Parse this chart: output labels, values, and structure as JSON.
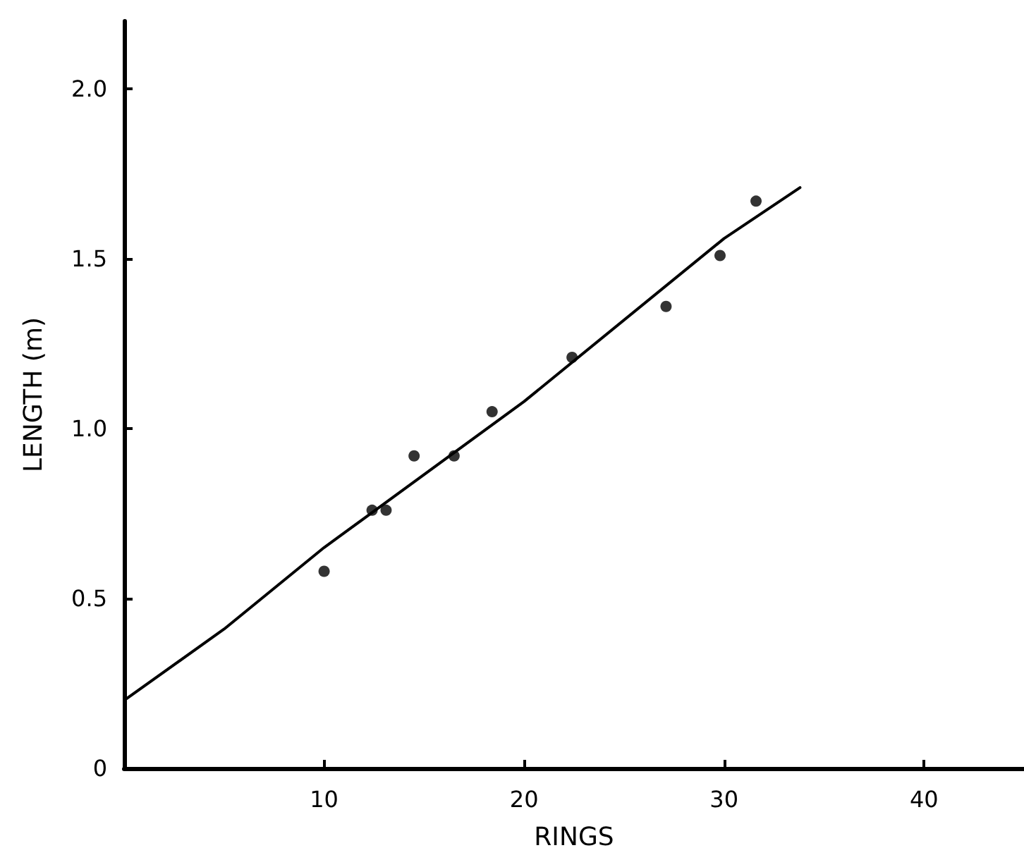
{
  "chart_data": {
    "type": "scatter",
    "xlabel": "RINGS",
    "ylabel": "LENGTH (m)",
    "xlim": [
      0,
      45
    ],
    "ylim": [
      0,
      2.2
    ],
    "xticks": [
      10,
      20,
      30,
      40
    ],
    "yticks": [
      {
        "value": 0,
        "label": "0"
      },
      {
        "value": 0.5,
        "label": "0.5"
      },
      {
        "value": 1,
        "label": "1.0"
      },
      {
        "value": 1.5,
        "label": "1.5"
      },
      {
        "value": 2,
        "label": "2.0"
      }
    ],
    "grid": false,
    "marker": "circle",
    "series": [
      {
        "color": "#000000",
        "x": [
          10,
          12.4,
          13.1,
          14.5,
          16.5,
          18.4,
          22.4,
          27.1,
          29.8,
          31.6
        ],
        "values": [
          0.58,
          0.76,
          0.76,
          0.92,
          0.92,
          1.05,
          1.21,
          1.36,
          1.51,
          1.67
        ]
      },
      {
        "type": "line",
        "color": "#000000",
        "line_style": "solid",
        "marker": "none",
        "x": [
          0,
          5,
          10,
          20,
          30,
          33.8
        ],
        "values": [
          0.2,
          0.41,
          0.65,
          1.08,
          1.56,
          1.71
        ]
      }
    ]
  }
}
